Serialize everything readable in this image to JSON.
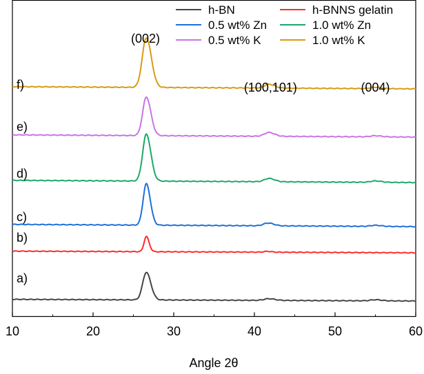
{
  "chart_data": {
    "type": "line",
    "xlabel": "Angle 2θ",
    "ylabel": "",
    "xlim": [
      10,
      60
    ],
    "xticks": [
      "10",
      "20",
      "30",
      "40",
      "50",
      "60"
    ],
    "grid": false,
    "legend_position": "top-right",
    "peak_annotations": [
      {
        "label": "(002)",
        "x": 26.5
      },
      {
        "label": "(100,101)",
        "x": 42.0
      },
      {
        "label": "(004)",
        "x": 55.0
      }
    ],
    "series": [
      {
        "name": "h-BN",
        "tag": "a)",
        "color": "#444444",
        "baseline": 0.0,
        "drift": 0.06,
        "peaks": [
          [
            26.6,
            1.0,
            0.45
          ],
          [
            41.8,
            0.06,
            0.6
          ],
          [
            55.0,
            0.04,
            0.6
          ]
        ]
      },
      {
        "name": "h-BNNS gelatin",
        "tag": "b)",
        "color": "#ff2a2a",
        "baseline": 1.75,
        "drift": 0.06,
        "peaks": [
          [
            26.6,
            0.55,
            0.28
          ],
          [
            41.6,
            0.03,
            0.4
          ]
        ]
      },
      {
        "name": "0.5 wt% Zn",
        "tag": "c)",
        "color": "#1d6fd8",
        "baseline": 2.7,
        "drift": 0.08,
        "peaks": [
          [
            26.6,
            1.5,
            0.4
          ],
          [
            41.7,
            0.1,
            0.55
          ],
          [
            55.0,
            0.04,
            0.6
          ]
        ]
      },
      {
        "name": "1.0 wt% Zn",
        "tag": "d)",
        "color": "#1aa86a",
        "baseline": 4.3,
        "drift": 0.08,
        "peaks": [
          [
            26.6,
            1.7,
            0.45
          ],
          [
            41.8,
            0.12,
            0.55
          ],
          [
            55.0,
            0.05,
            0.6
          ]
        ]
      },
      {
        "name": "0.5 wt% K",
        "tag": "e)",
        "color": "#c973e6",
        "baseline": 5.95,
        "drift": 0.08,
        "peaks": [
          [
            26.6,
            1.4,
            0.45
          ],
          [
            41.8,
            0.14,
            0.55
          ],
          [
            55.0,
            0.04,
            0.6
          ]
        ]
      },
      {
        "name": "1.0 wt% K",
        "tag": "f)",
        "color": "#d89a12",
        "baseline": 7.7,
        "drift": 0.08,
        "peaks": [
          [
            26.6,
            1.8,
            0.5
          ],
          [
            41.8,
            0.14,
            0.55
          ],
          [
            55.0,
            0.05,
            0.6
          ]
        ]
      }
    ]
  }
}
